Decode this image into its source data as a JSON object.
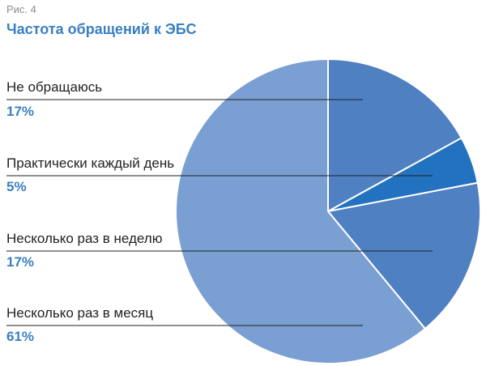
{
  "figure_label": "Рис. 4",
  "chart_data": {
    "type": "pie",
    "title": "Частота обращений к ЭБС",
    "slices": [
      {
        "label": "Не обращаюсь",
        "value": 17,
        "value_label": "17%",
        "color": "#4f80c2"
      },
      {
        "label": "Практически каждый день",
        "value": 5,
        "value_label": "5%",
        "color": "#2272bf"
      },
      {
        "label": "Несколько раз в неделю",
        "value": 17,
        "value_label": "17%",
        "color": "#4f80c2"
      },
      {
        "label": "Несколько раз в месяц",
        "value": 61,
        "value_label": "61%",
        "color": "#7a9fd2"
      }
    ],
    "start_angle": "12 o'clock",
    "direction": "clockwise",
    "separator_color": "#ffffff",
    "leader_line_color": "#222222"
  }
}
